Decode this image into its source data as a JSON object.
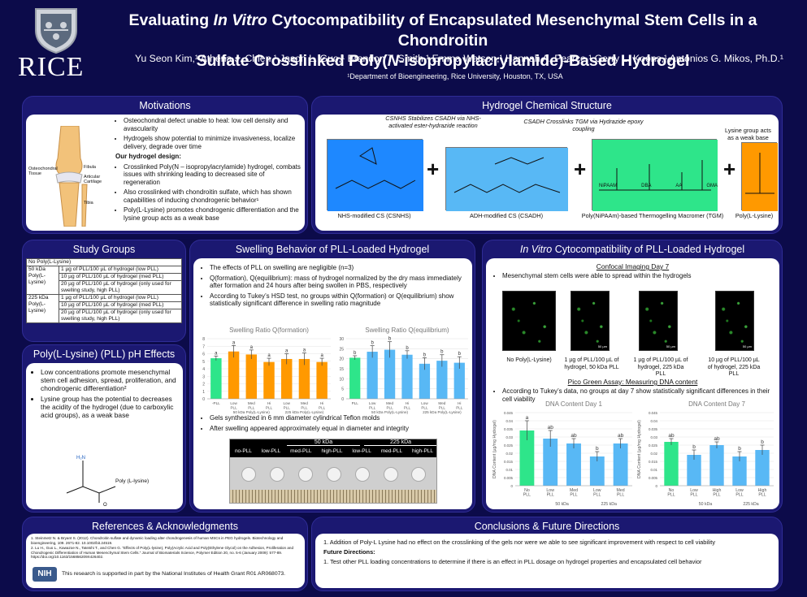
{
  "header": {
    "title_line1_a": "Evaluating ",
    "title_line1_i": "In Vitro",
    "title_line1_b": " Cytocompatibility of Encapsulated Mesenchymal Stem Cells in a Chondroitin",
    "title_line2_a": "Sulfate Crosslinked Poly(",
    "title_line2_i": "N",
    "title_line2_b": "-isopropylacrylamide)-Based Hydrogel",
    "authors": "Yu Seon Kim,¹ Athena J. Chien,¹ Jason L. Guo,¹  Brandon T. Smith,¹ Emma Watson,¹ Hannah A. Pearce,¹ Gerry L. Koons,¹ Antonios G. Mikos, Ph.D.¹",
    "department": "¹Department of Bioengineering, Rice University, Houston, TX, USA",
    "logo_text": "RICE"
  },
  "motivations": {
    "title": "Motivations",
    "knee_labels": [
      "Osteochondral Tissue",
      "Fibula",
      "Articular Cartilage",
      "Tibia"
    ],
    "bullets": [
      "Osteochondral defect unable to heal: low cell density and avascularity",
      "Hydrogels show potential to minimize invasiveness, localize delivery, degrade over time"
    ],
    "design_heading": "Our hydrogel design:",
    "design_bullets": [
      "Crosslinked Poly(N – isopropylacrylamide) hydrogel, combats issues with shrinking leading to decreased site of regeneration",
      "Also crosslinked with chondroitin sulfate, which has shown capabilities of inducing chondrogenic behavior¹",
      "Poly(L-Lysine) promotes chondrogenic differentiation and the lysine group acts as a weak base"
    ]
  },
  "chemical": {
    "title": "Hydrogel Chemical Structure",
    "note1": "CSNHS Stabilizes CSADH via NHS-activated ester-hydrazide reaction",
    "note2": "CSADH Crosslinks TGM via Hydrazide epoxy coupling",
    "note3": "Lysine group acts as a weak base",
    "labels": [
      "NHS-modified CS (CSNHS)",
      "ADH-modified CS  (CSADH)",
      "Poly(NiPAAm)-based Thermogelling Macromer (TGM)",
      "Poly(L-Lysine)"
    ],
    "tgm_units": [
      "NiPAAM",
      "DBA",
      "AA",
      "GMA"
    ],
    "colors": {
      "csnhs": "#1e88ff",
      "csadh": "#58b8f5",
      "tgm": "#2ee58a",
      "pll": "#ff9900"
    }
  },
  "study_groups": {
    "title": "Study Groups",
    "rows": [
      {
        "group": "No Poly(L-Lysine)",
        "items": []
      },
      {
        "group": "50 kDa Poly(L-Lysine)",
        "items": [
          "1 µg of PLL/100 µL of hydrogel (low PLL)",
          "10 µg of PLL/100 µL of hydrogel (med PLL)",
          "20 µg of PLL/100 µL of hydrogel (only used for swelling study, high PLL)"
        ]
      },
      {
        "group": "225 kDa Poly(L-Lysine)",
        "items": [
          "1 µg of PLL/100 µL of hydrogel (low PLL)",
          "10 µg of PLL/100 µL of hydrogel (med PLL)",
          "20 µg of PLL/100 µL of hydrogel (only used for swelling study, high PLL)"
        ]
      }
    ]
  },
  "pll_effects": {
    "title": "Poly(L-Lysine) (PLL) pH Effects",
    "bullets": [
      "Low concentrations promote mesenchymal stem cell adhesion, spread, proliferation, and chondrogenic differentiation²",
      "Lysine group has the potential to decreases the acidity of the hydrogel (due to carboxylic acid groups), as a weak base"
    ],
    "structure_label": "Poly (L-lysine)"
  },
  "swelling": {
    "title": "Swelling Behavior of PLL-Loaded Hydrogel",
    "bullets": [
      "The effects of PLL on swelling are negligible (n=3)",
      "Q(formation), Q(equilibrium): mass of hydrogel normalized by the dry mass immediately after formation and 24 hours after being swollen in PBS, respectively",
      "According to Tukey’s HSD test, no groups within Q(formation) or Q(equilibrium) show statistically significant difference in swelling ratio magnitude"
    ],
    "bullets2": [
      "Gels synthesized in 6 mm diameter cylindrical Teflon molds",
      "After swelling appeared approximately equal in diameter and integrity"
    ],
    "photo_labels": {
      "group1": "50 kDa",
      "group2": "225 kDa",
      "cols": [
        "no-PLL",
        "low-PLL",
        "med-PLL",
        "high-PLL",
        "low-PLL",
        "med-PLL",
        "high-PLL"
      ]
    }
  },
  "invitro": {
    "title_i": "In Vitro",
    "title_b": " Cytocompatibility of PLL-Loaded Hydrogel",
    "confocal_heading": "Confocal Imaging Day 7",
    "confocal_bullet": "Mesenchymal stem cells were able to spread within the hydrogels",
    "images": [
      "No Poly(L-Lysine)",
      "1 µg of PLL/100 µL of hydrogel, 50 kDa PLL",
      "1 µg of PLL/100 µL of hydrogel, 225 kDa PLL",
      "10 µg of PLL/100 µL of hydrogel, 225 kDa PLL"
    ],
    "scale_label": "50 µm",
    "picogreen_heading": "Pico Green Assay: Measuring DNA content",
    "picogreen_bullet": "According to Tukey’s data, no groups at day 7 show statistically significant differences in their cell viability"
  },
  "references": {
    "title": "References & Acknowledgments",
    "items": [
      "1.  Steinmetz N. & Bryant S. (2012). Chondroitin sulfate and dynamic loading alter chondrogenesis of human MSCs in PEG hydrogels. Biotechnology and bioengineering, 109. 2671-82. 10.1002/bit.24519.",
      "2.  Lu H., Guo L., Kawazoe N., Tateishi T., and Chen G. “Effects of Poly(L-lysine), Poly(Acrylic Acid and Poly(Ethylene Glycol) on the Adhesion, Proliferation and Chondrogenic Differentiation of Human Mesenchymal Stem Cells.” Journal of Biomaterials Science, Polymer Edition 20, no. 5-6 (January 2009): 577-89. https://doi.org/10.1163/156856209X426402."
    ],
    "nih": "NIH",
    "ack": "This research is supported in part by the National Institutes of Health Grant R01 AR068073."
  },
  "conclusions": {
    "title": "Conclusions & Future Directions",
    "line1": "1.  Addition of Poly-L Lysine had no effect on the crosslinking of the gels nor were we able to see significant improvement with respect to cell viability",
    "future_heading": "Future Directions:",
    "line2": "1.  Test other PLL loading concentrations to determine if there is an effect in PLL dosage on hydrogel properties and encapsulated cell behavior"
  },
  "chart_data": [
    {
      "type": "bar",
      "title": "Swelling Ratio Q(formation)",
      "categories": [
        "-PLL",
        "Low PLL",
        "Med PLL",
        "Hi PLL",
        "Low PLL",
        "Med PLL",
        "Hi PLL"
      ],
      "values": [
        5.4,
        6.3,
        5.9,
        4.9,
        5.3,
        5.3,
        4.9
      ],
      "errors": [
        0.3,
        0.8,
        0.6,
        0.5,
        0.7,
        0.8,
        0.5
      ],
      "letters": [
        "a",
        "a",
        "a",
        "a",
        "a",
        "a",
        "a"
      ],
      "groups": [
        "50 kDa Poly(L-Lysine)",
        "225 kDa Poly(L-Lysine)"
      ],
      "ylim": [
        0,
        8
      ],
      "yticks": [
        0,
        1,
        2,
        3,
        4,
        5,
        6,
        7,
        8
      ],
      "colors": [
        "#2ee58a",
        "#ff9900",
        "#ff9900",
        "#ff9900",
        "#ff9900",
        "#ff9900",
        "#ff9900"
      ]
    },
    {
      "type": "bar",
      "title": "Swelling Ratio Q(equilibrium)",
      "categories": [
        "PLL",
        "Low PLL",
        "Med PLL",
        "Hi PLL",
        "Low PLL",
        "Med PLL",
        "Hi PLL"
      ],
      "values": [
        20.5,
        23.5,
        24.5,
        22,
        17.5,
        19,
        18
      ],
      "errors": [
        1,
        3,
        4,
        2,
        3,
        3,
        3
      ],
      "letters": [
        "b",
        "b",
        "b",
        "b",
        "b",
        "b",
        "b"
      ],
      "groups": [
        "50 kDa Poly(L-Lysine)",
        "225 kDa Poly(L-Lysine)"
      ],
      "ylim": [
        0,
        30
      ],
      "yticks": [
        0,
        5,
        10,
        15,
        20,
        25,
        30
      ],
      "colors": [
        "#2ee58a",
        "#58b8f5",
        "#58b8f5",
        "#58b8f5",
        "#58b8f5",
        "#58b8f5",
        "#58b8f5"
      ]
    },
    {
      "type": "bar",
      "title": "DNA Content Day 1",
      "ylabel": "DNA Content (µg/mg Hydrogel)",
      "categories": [
        "No PLL",
        "Low PLL",
        "Med PLL",
        "Low PLL",
        "Med PLL"
      ],
      "values": [
        0.034,
        0.029,
        0.026,
        0.018,
        0.026
      ],
      "errors": [
        0.006,
        0.005,
        0.003,
        0.003,
        0.003
      ],
      "letters": [
        "a",
        "ab",
        "ab",
        "b",
        "ab"
      ],
      "groups": [
        "50 kDa",
        "225 kDa"
      ],
      "ylim": [
        0,
        0.045
      ],
      "yticks": [
        0,
        0.005,
        0.01,
        0.015,
        0.02,
        0.025,
        0.03,
        0.035,
        0.04,
        0.045
      ],
      "colors": [
        "#2ee58a",
        "#58b8f5",
        "#58b8f5",
        "#58b8f5",
        "#58b8f5"
      ]
    },
    {
      "type": "bar",
      "title": "DNA Content Day 7",
      "ylabel": "DNA Content (µg/mg Hydrogel)",
      "categories": [
        "No PLL",
        "Low PLL",
        "High PLL",
        "Low PLL",
        "High PLL"
      ],
      "values": [
        0.027,
        0.019,
        0.025,
        0.018,
        0.022
      ],
      "errors": [
        0.002,
        0.003,
        0.002,
        0.003,
        0.003
      ],
      "letters": [
        "ab",
        "b",
        "ab",
        "b",
        "b"
      ],
      "groups": [
        "50 kDa",
        "225 kDa"
      ],
      "ylim": [
        0,
        0.045
      ],
      "yticks": [
        0,
        0.005,
        0.01,
        0.015,
        0.02,
        0.025,
        0.03,
        0.035,
        0.04,
        0.045
      ],
      "colors": [
        "#2ee58a",
        "#58b8f5",
        "#58b8f5",
        "#58b8f5",
        "#58b8f5"
      ]
    }
  ]
}
